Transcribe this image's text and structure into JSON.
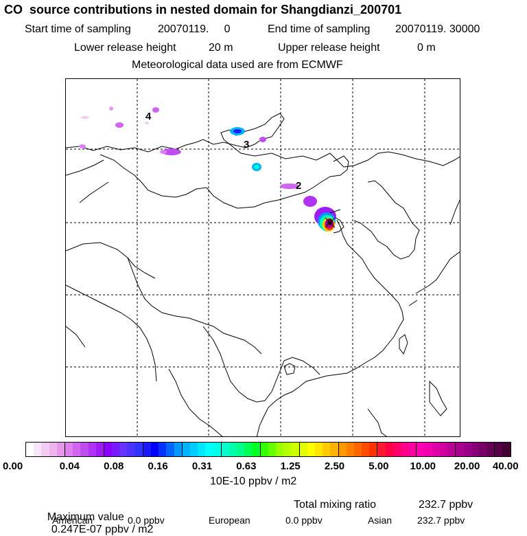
{
  "header": {
    "title": "CO  source contributions in nested domain for Shangdianzi_200701",
    "start_label": "Start time of sampling",
    "start_value": "20070119.     0",
    "end_label": "End time of sampling",
    "end_value": "20070119. 30000",
    "lower_label": "Lower release height",
    "lower_value": "20 m",
    "upper_label": "Upper release height",
    "upper_value": "0 m",
    "met_line": "Meteorological data used are from ECMWF"
  },
  "map": {
    "region_markers": [
      "4",
      "3",
      "2"
    ],
    "grid": "dashed"
  },
  "colorbar": {
    "tick_labels": [
      "0.00",
      "0.04",
      "0.08",
      "0.16",
      "0.31",
      "0.63",
      "1.25",
      "2.50",
      "5.00",
      "10.00",
      "20.00",
      "40.00"
    ],
    "colors": [
      "#ffffff",
      "#f7e6f7",
      "#f2ccf2",
      "#ecb3ec",
      "#e699e6",
      "#dd80f0",
      "#d066f0",
      "#c04df0",
      "#b033f5",
      "#a01af5",
      "#8c00ff",
      "#7a1aff",
      "#6633ff",
      "#4d33ff",
      "#3333ff",
      "#1a1aff",
      "#0000ff",
      "#0033ff",
      "#0066ff",
      "#0099ff",
      "#00b3ff",
      "#00ccff",
      "#00e6ff",
      "#00ffff",
      "#00ffe6",
      "#00ffcc",
      "#00ffaa",
      "#00ff88",
      "#00ff55",
      "#00ff22",
      "#33ff00",
      "#66ff00",
      "#99ff00",
      "#b3ff00",
      "#ccff00",
      "#e6ff00",
      "#ffff00",
      "#ffe600",
      "#ffcc00",
      "#ffb300",
      "#ff9900",
      "#ff8000",
      "#ff6600",
      "#ff4d00",
      "#ff3300",
      "#ff1a33",
      "#ff0044",
      "#ff0066",
      "#ff0088",
      "#ff00a0",
      "#ff00b3",
      "#f000b0",
      "#e000a8",
      "#d000a0",
      "#bb0098",
      "#aa0090",
      "#990088",
      "#880077",
      "#770066",
      "#660055",
      "#550044",
      "#440033"
    ],
    "units": "10E-10 ppbv / m2"
  },
  "footer": {
    "max_label": "Maximum value",
    "max_value": "0.247E-07 ppbv / m2",
    "total_label": "Total mixing ratio",
    "total_value": "232.7 ppbv",
    "american_label": "American",
    "american_value": "0.0 ppbv",
    "european_label": "European",
    "european_value": "0.0 ppbv",
    "asian_label": "Asian",
    "asian_value": "232.7 ppbv"
  }
}
